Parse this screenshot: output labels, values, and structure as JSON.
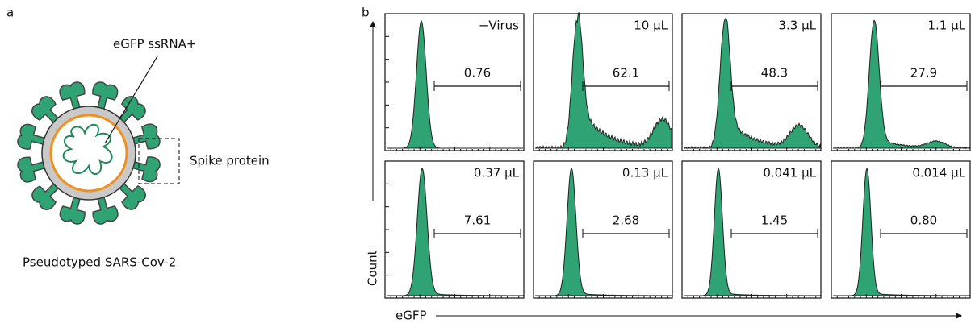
{
  "panel_a": {
    "label": "a",
    "rna_label": "eGFP ssRNA+",
    "spike_label": "Spike protein",
    "caption": "Pseudotyped SARS-Cov-2"
  },
  "panel_b": {
    "label": "b",
    "y_axis": "Count",
    "x_axis": "eGFP",
    "panels": [
      {
        "condition": "−Virus",
        "gate": "0.76"
      },
      {
        "condition": "10 µL",
        "gate": "62.1"
      },
      {
        "condition": "3.3 µL",
        "gate": "48.3"
      },
      {
        "condition": "1.1 µL",
        "gate": "27.9"
      },
      {
        "condition": "0.37 µL",
        "gate": "7.61"
      },
      {
        "condition": "0.13 µL",
        "gate": "2.68"
      },
      {
        "condition": "0.041 µL",
        "gate": "1.45"
      },
      {
        "condition": "0.014 µL",
        "gate": "0.80"
      }
    ]
  }
}
